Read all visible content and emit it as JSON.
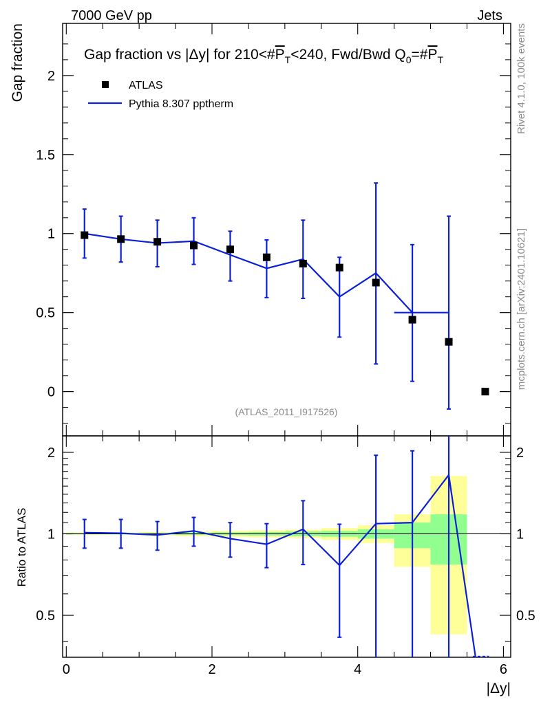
{
  "header": {
    "left": "7000 GeV pp",
    "right": "Jets"
  },
  "side_labels": {
    "rivet": "Rivet 4.1.0,  100k events",
    "mcplots": "mcplots.cern.ch [arXiv:2401.10621]"
  },
  "watermark": "(ATLAS_2011_I917526)",
  "colors": {
    "data": "#000000",
    "mc": "#0b1fd6",
    "band_yellow": "#ffff99",
    "band_green": "#90ff90"
  },
  "chart_data": [
    {
      "type": "scatter",
      "title": "Gap fraction vs |Δy| for 210<#P̅T<240, Fwd/Bwd Q0=#P̅T",
      "title_parts": {
        "pre": "Gap fraction vs |Δy| for 210<#",
        "p": "P",
        "t": "T",
        "mid": "<240, Fwd/Bwd Q",
        "zero": "0",
        "post": "=#"
      },
      "ylabel": "Gap fraction",
      "ylim": [
        -0.28,
        2.33
      ],
      "xlim": [
        -0.05,
        6.1
      ],
      "yticks": [
        0,
        0.5,
        1,
        1.5,
        2
      ],
      "ytick_labels": [
        "0",
        "0.5",
        "1",
        "1.5",
        "2"
      ],
      "legend": [
        {
          "name": "ATLAS",
          "kind": "marker"
        },
        {
          "name": "Pythia 8.307 pptherm",
          "kind": "line"
        }
      ],
      "data_series": {
        "name": "ATLAS",
        "x": [
          0.25,
          0.75,
          1.25,
          1.75,
          2.25,
          2.75,
          3.25,
          3.75,
          4.25,
          4.75,
          5.25,
          5.75
        ],
        "y": [
          0.99,
          0.965,
          0.948,
          0.925,
          0.9,
          0.85,
          0.81,
          0.785,
          0.69,
          0.455,
          0.315,
          0.0
        ]
      },
      "mc_series": {
        "name": "Pythia 8.307 pptherm",
        "x": [
          0.25,
          0.75,
          1.25,
          1.75,
          2.25,
          2.75,
          3.25,
          3.75,
          4.25,
          4.75,
          5.25
        ],
        "y": [
          1.0,
          0.965,
          0.94,
          0.952,
          0.865,
          0.78,
          0.838,
          0.6,
          0.75,
          0.5,
          0.5
        ],
        "err_low": [
          0.845,
          0.82,
          0.79,
          0.805,
          0.7,
          0.595,
          0.59,
          0.345,
          0.175,
          0.065,
          -0.11
        ],
        "err_high": [
          1.155,
          1.11,
          1.085,
          1.1,
          1.015,
          0.96,
          1.085,
          0.85,
          1.32,
          0.93,
          1.11
        ],
        "flat_last_bin": [
          4.5,
          5.25
        ]
      }
    },
    {
      "type": "line",
      "ylabel": "Ratio to ATLAS",
      "xlabel": "|Δy|",
      "ylim": [
        0.35,
        2.3
      ],
      "xlim": [
        -0.05,
        6.1
      ],
      "yticks": [
        0.5,
        1,
        2
      ],
      "ytick_labels": [
        "0.5",
        "1",
        "2"
      ],
      "xticks": [
        0,
        2,
        4,
        6
      ],
      "xtick_labels": [
        "0",
        "2",
        "4",
        "6"
      ],
      "reference_line": 1,
      "bands": [
        {
          "x0": 0.0,
          "x1": 0.5,
          "y_lo": 0.99,
          "y_hi": 1.01,
          "g_lo": 0.995,
          "g_hi": 1.005
        },
        {
          "x0": 0.5,
          "x1": 1.0,
          "y_lo": 0.99,
          "y_hi": 1.01,
          "g_lo": 0.995,
          "g_hi": 1.005
        },
        {
          "x0": 1.0,
          "x1": 1.5,
          "y_lo": 0.985,
          "y_hi": 1.015,
          "g_lo": 0.993,
          "g_hi": 1.007
        },
        {
          "x0": 1.5,
          "x1": 2.0,
          "y_lo": 0.98,
          "y_hi": 1.02,
          "g_lo": 0.99,
          "g_hi": 1.01
        },
        {
          "x0": 2.0,
          "x1": 2.5,
          "y_lo": 0.975,
          "y_hi": 1.025,
          "g_lo": 0.988,
          "g_hi": 1.012
        },
        {
          "x0": 2.5,
          "x1": 3.0,
          "y_lo": 0.97,
          "y_hi": 1.03,
          "g_lo": 0.985,
          "g_hi": 1.015
        },
        {
          "x0": 3.0,
          "x1": 3.5,
          "y_lo": 0.965,
          "y_hi": 1.035,
          "g_lo": 0.98,
          "g_hi": 1.02
        },
        {
          "x0": 3.5,
          "x1": 4.0,
          "y_lo": 0.95,
          "y_hi": 1.05,
          "g_lo": 0.975,
          "g_hi": 1.025
        },
        {
          "x0": 4.0,
          "x1": 4.5,
          "y_lo": 0.925,
          "y_hi": 1.075,
          "g_lo": 0.96,
          "g_hi": 1.04
        },
        {
          "x0": 4.5,
          "x1": 5.0,
          "y_lo": 0.755,
          "y_hi": 1.18,
          "g_lo": 0.885,
          "g_hi": 1.1
        },
        {
          "x0": 5.0,
          "x1": 5.5,
          "y_lo": 0.425,
          "y_hi": 1.635,
          "g_lo": 0.77,
          "g_hi": 1.18
        }
      ],
      "series": [
        {
          "name": "Pythia 8.307 pptherm",
          "x": [
            0.25,
            0.75,
            1.25,
            1.75,
            2.25,
            2.75,
            3.25,
            3.75,
            4.25,
            4.75,
            5.25,
            5.75
          ],
          "y": [
            1.01,
            1.005,
            0.99,
            1.025,
            0.96,
            0.915,
            1.04,
            0.765,
            1.09,
            1.1,
            1.65,
            0.2
          ],
          "err_low": [
            0.885,
            0.885,
            0.87,
            0.9,
            0.82,
            0.75,
            0.77,
            0.415,
            0.25,
            0.1,
            -0.3,
            null
          ],
          "err_high": [
            1.13,
            1.13,
            1.11,
            1.15,
            1.1,
            1.09,
            1.325,
            1.085,
            1.95,
            2.025,
            2.45,
            null
          ]
        }
      ]
    }
  ]
}
